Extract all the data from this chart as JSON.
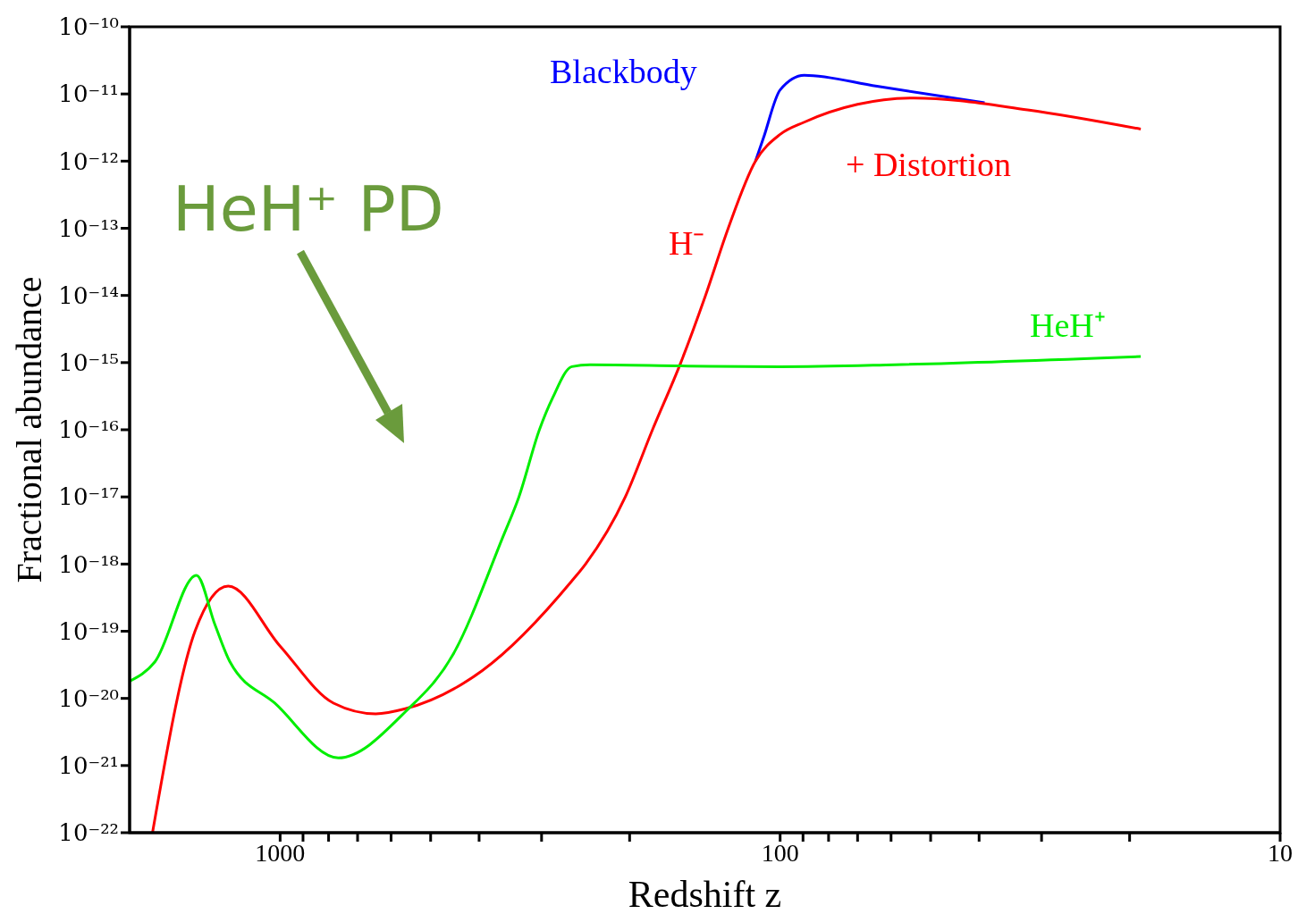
{
  "chart_data": {
    "type": "line",
    "xlabel": "Redshift z",
    "ylabel": "Fractional abundance",
    "log": "xy",
    "xlim": [
      2000,
      10
    ],
    "ylim": [
      1e-22,
      1e-10
    ],
    "xticks": [
      1000,
      {
        "value": 900,
        "label": null
      },
      {
        "value": 800,
        "label": null
      },
      {
        "value": 700,
        "label": null
      },
      {
        "value": 600,
        "label": null
      },
      {
        "value": 500,
        "label": null
      },
      {
        "value": 400,
        "label": null
      },
      {
        "value": 300,
        "label": null
      },
      {
        "value": 200,
        "label": null
      },
      100,
      {
        "value": 90,
        "label": null
      },
      {
        "value": 80,
        "label": null
      },
      {
        "value": 70,
        "label": null
      },
      {
        "value": 60,
        "label": null
      },
      {
        "value": 50,
        "label": null
      },
      {
        "value": 40,
        "label": null
      },
      {
        "value": 30,
        "label": null
      },
      {
        "value": 20,
        "label": null
      },
      10
    ],
    "yticks": [
      {
        "value": 1e-22,
        "label": "10⁻²²"
      },
      {
        "value": 1e-21,
        "label": "10⁻²¹"
      },
      {
        "value": 1e-20,
        "label": "10⁻²⁰"
      },
      {
        "value": 1e-19,
        "label": "10⁻¹⁹"
      },
      {
        "value": 1e-18,
        "label": "10⁻¹⁸"
      },
      {
        "value": 1e-17,
        "label": "10⁻¹⁷"
      },
      {
        "value": 1e-16,
        "label": "10⁻¹⁶"
      },
      {
        "value": 1e-15,
        "label": "10⁻¹⁵"
      },
      {
        "value": 1e-14,
        "label": "10⁻¹⁴"
      },
      {
        "value": 1e-13,
        "label": "10⁻¹³"
      },
      {
        "value": 1e-12,
        "label": "10⁻¹²"
      },
      {
        "value": 1e-11,
        "label": "10⁻¹¹"
      },
      {
        "value": 1e-10,
        "label": "10⁻¹⁰"
      }
    ],
    "series": [
      {
        "name": "Blackbody",
        "color": "#0000ff",
        "x": [
          112,
          108,
          100,
          89.5,
          64,
          39
        ],
        "values": [
          1e-12,
          2.2e-12,
          1.15e-11,
          1.9e-11,
          1.3e-11,
          7.4e-12
        ]
      },
      {
        "name": "+ Distortion",
        "color": "#ff0000",
        "x": [
          1800,
          1480,
          1270,
          1000,
          782,
          644,
          562,
          394,
          261,
          245,
          204,
          180,
          158,
          141,
          127,
          112,
          100,
          89.5,
          70,
          54,
          32,
          19
        ],
        "values": [
          1e-22,
          1e-19,
          4.7e-19,
          6e-20,
          8.5e-21,
          5.9e-21,
          7e-21,
          2.6e-20,
          5.6e-19,
          1e-18,
          1e-17,
          1e-16,
          1e-15,
          1e-14,
          1e-13,
          1e-12,
          2.5e-12,
          3.8e-12,
          7e-12,
          8.7e-12,
          5.8e-12,
          3e-12
        ]
      },
      {
        "name": "HeH⁺",
        "color": "#00ee00",
        "x": [
          2000,
          1780,
          1470,
          1350,
          1260,
          1025,
          765,
          562,
          451,
          358,
          333,
          303,
          285,
          261,
          240,
          153,
          100,
          59,
          19
        ],
        "values": [
          1.8e-20,
          3.5e-20,
          6.8e-19,
          1.25e-19,
          3.5e-20,
          8.5e-21,
          1.3e-21,
          6.3e-21,
          4.5e-20,
          2.6e-18,
          1e-17,
          1e-16,
          3e-16,
          8.7e-16,
          9.3e-16,
          8.9e-16,
          8.7e-16,
          9.3e-16,
          1.23e-15
        ]
      }
    ],
    "annotations": [
      "H⁻",
      "HeH⁺ PD"
    ]
  }
}
